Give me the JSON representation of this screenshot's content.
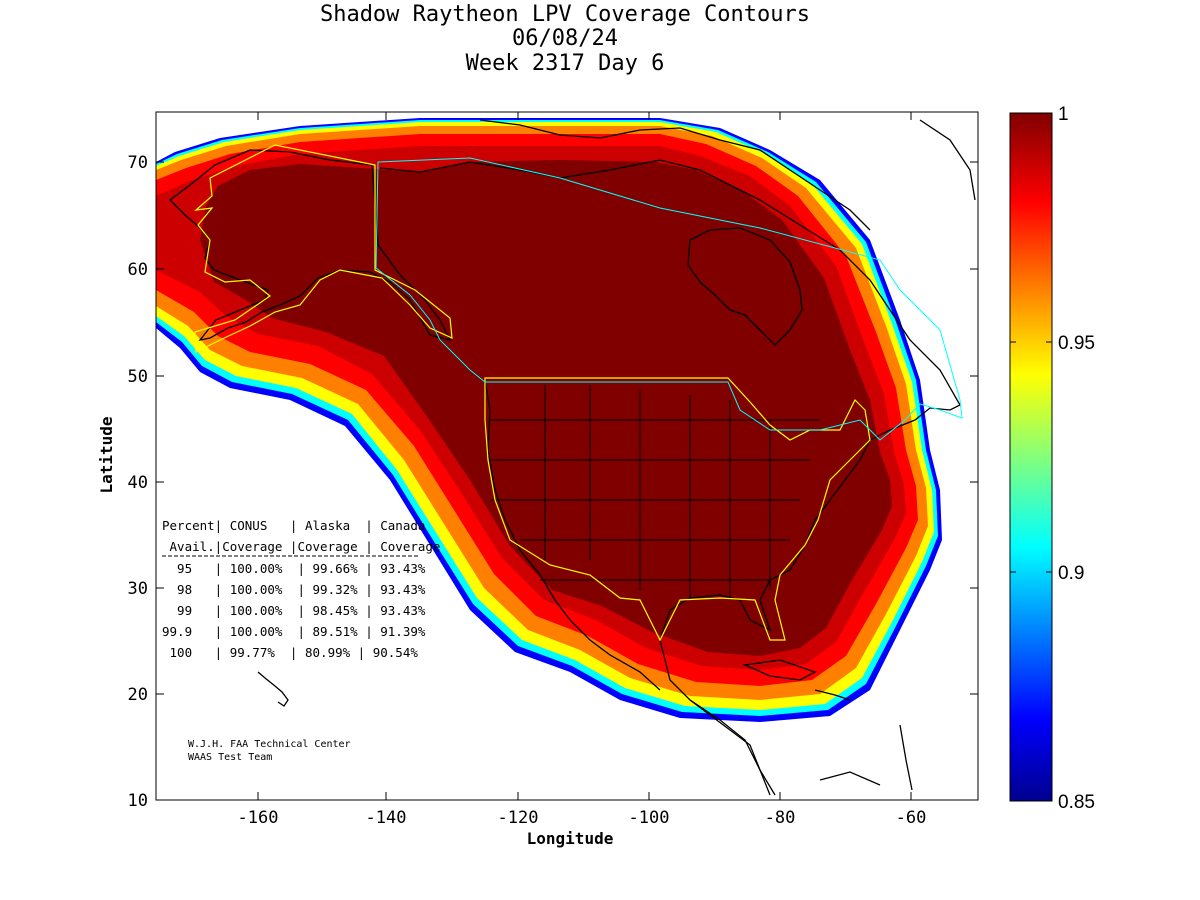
{
  "title": {
    "line1": "Shadow Raytheon LPV Coverage Contours",
    "line2": "06/08/24",
    "line3": "Week 2317 Day 6"
  },
  "axes": {
    "xlabel": "Longitude",
    "ylabel": "Latitude",
    "x_ticks": [
      "-160",
      "-140",
      "-120",
      "-100",
      "-80",
      "-60"
    ],
    "y_ticks": [
      "70",
      "60",
      "50",
      "40",
      "30",
      "20",
      "10"
    ],
    "x_range": [
      -175,
      -50
    ],
    "y_range": [
      10,
      75
    ]
  },
  "colorbar": {
    "ticks": [
      "1",
      "0.95",
      "0.9",
      "0.85"
    ],
    "range": [
      0.85,
      1
    ]
  },
  "table": {
    "header1": "Percent| CONUS   | Alaska  | Canada",
    "header2": " Avail.|Coverage |Coverage | Coverage",
    "rows": [
      "  95   | 100.00%  | 99.66% | 93.43%",
      "  98   | 100.00%  | 99.32% | 93.43%",
      "  99   | 100.00%  | 98.45% | 93.43%",
      "99.9   | 100.00%  | 89.51% | 91.39%",
      " 100   | 99.77%  | 80.99% | 90.54%"
    ]
  },
  "credit": {
    "line1": "W.J.H. FAA Technical Center",
    "line2": "WAAS Test Team"
  },
  "colors": {
    "full_coverage": "#800000",
    "boundary": "#ffff00",
    "canada_boundary": "#00ffff"
  }
}
